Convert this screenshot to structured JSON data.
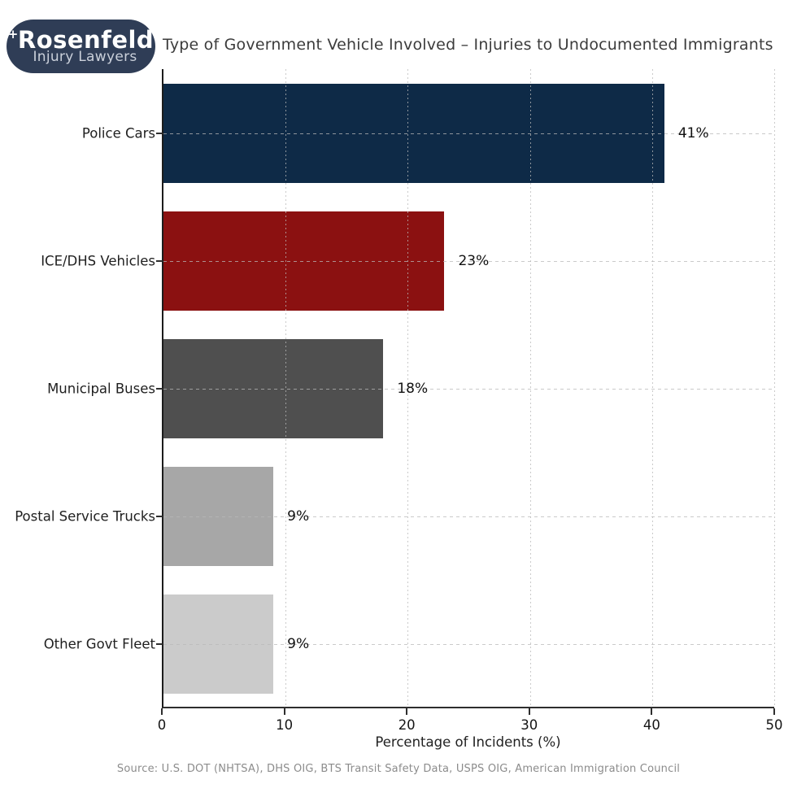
{
  "brand": {
    "logo_line1": "Rosenfeld",
    "logo_line2": "Injury Lawyers",
    "logo_plus": "+",
    "logo_bg": "#2f3d56",
    "logo_text_color": "#ffffff",
    "logo_subtext_color": "#d8dde6"
  },
  "header": {
    "title": "Type of Government Vehicle Involved – Injuries to Undocumented Immigrants"
  },
  "chart_data": {
    "type": "bar",
    "orientation": "horizontal",
    "title": "Type of Government Vehicle Involved – Injuries to Undocumented Immigrants",
    "categories": [
      "Police Cars",
      "ICE/DHS Vehicles",
      "Municipal Buses",
      "Postal Service Trucks",
      "Other Govt Fleet"
    ],
    "values": [
      41,
      23,
      18,
      9,
      9
    ],
    "value_labels": [
      "41%",
      "23%",
      "18%",
      "9%",
      "9%"
    ],
    "bar_colors": [
      "#0e2a47",
      "#8b1111",
      "#4f4f4f",
      "#a7a7a7",
      "#cbcbcb"
    ],
    "xlabel": "Percentage of Incidents (%)",
    "xlim": [
      0,
      50
    ],
    "xticks": [
      0,
      10,
      20,
      30,
      40,
      50
    ],
    "grid": "dashed",
    "legend": "none"
  },
  "footer": {
    "source": "Source: U.S. DOT (NHTSA), DHS OIG, BTS Transit Safety Data, USPS OIG, American Immigration Council"
  }
}
